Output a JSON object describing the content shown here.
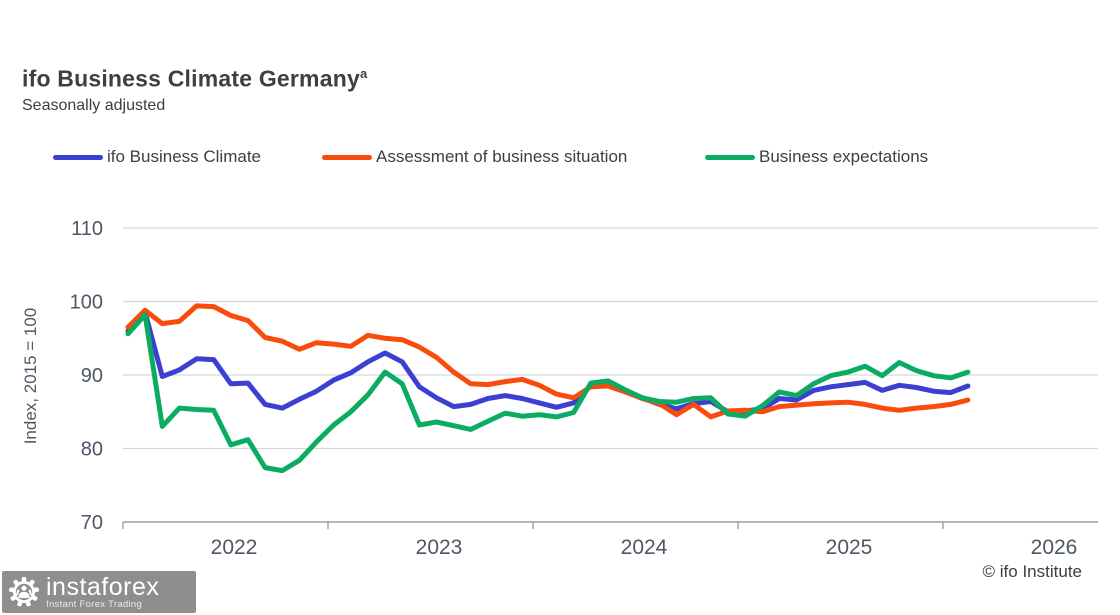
{
  "header": {
    "title": "ifo Business Climate Germany",
    "title_superscript": "a",
    "subtitle": "Seasonally adjusted"
  },
  "legend": [
    {
      "label": "ifo Business Climate",
      "color": "#3c3fd1"
    },
    {
      "label": "Assessment of business situation",
      "color": "#f94b0c"
    },
    {
      "label": "Business expectations",
      "color": "#0bac62"
    }
  ],
  "footer": {
    "credit": "© ifo Institute"
  },
  "logo": {
    "brand": "instaforex",
    "tagline": "Instant Forex Trading"
  },
  "chart_data": {
    "type": "line",
    "title": "ifo Business Climate Germany",
    "subtitle": "Seasonally adjusted",
    "ylabel": "Index, 2015 = 100",
    "xlabel": "",
    "ylim": [
      70,
      112
    ],
    "y_ticks": [
      70,
      80,
      90,
      100,
      110
    ],
    "x_tick_years": [
      "2022",
      "2023",
      "2024",
      "2025",
      "2026"
    ],
    "x_unit": "month",
    "x_start": "2022-01",
    "x_end": "2026-02",
    "grid": "horizontal",
    "legend_position": "top",
    "series": [
      {
        "name": "ifo Business Climate",
        "color": "#3c3fd1",
        "values": [
          96.0,
          98.5,
          89.8,
          90.7,
          92.2,
          92.1,
          88.8,
          88.9,
          86.0,
          85.5,
          86.7,
          87.8,
          89.3,
          90.3,
          91.8,
          93.0,
          91.8,
          88.4,
          86.9,
          85.7,
          86.0,
          86.8,
          87.2,
          86.8,
          86.2,
          85.6,
          86.2,
          88.6,
          89.0,
          87.9,
          86.9,
          86.0,
          85.4,
          86.1,
          86.4,
          85.0,
          85.1,
          85.4,
          86.8,
          86.6,
          87.9,
          88.4,
          88.7,
          89.0,
          87.9,
          88.6,
          88.3,
          87.8,
          87.6,
          88.5
        ]
      },
      {
        "name": "Assessment of business situation",
        "color": "#f94b0c",
        "values": [
          96.5,
          98.8,
          97.0,
          97.3,
          99.4,
          99.3,
          98.1,
          97.4,
          95.1,
          94.6,
          93.5,
          94.4,
          94.2,
          93.9,
          95.4,
          95.0,
          94.8,
          93.8,
          92.4,
          90.4,
          88.8,
          88.7,
          89.1,
          89.4,
          88.6,
          87.4,
          86.9,
          88.4,
          88.5,
          87.7,
          86.8,
          86.1,
          84.6,
          86.0,
          84.3,
          85.1,
          85.2,
          85.0,
          85.7,
          85.9,
          86.1,
          86.2,
          86.3,
          86.0,
          85.5,
          85.2,
          85.5,
          85.7,
          86.0,
          86.6
        ]
      },
      {
        "name": "Business expectations",
        "color": "#0bac62",
        "values": [
          95.6,
          98.2,
          83.0,
          85.5,
          85.3,
          85.2,
          80.5,
          81.2,
          77.4,
          77.0,
          78.4,
          80.9,
          83.2,
          85.0,
          87.3,
          90.4,
          88.8,
          83.2,
          83.6,
          83.1,
          82.6,
          83.7,
          84.8,
          84.4,
          84.6,
          84.3,
          84.9,
          88.9,
          89.2,
          88.0,
          86.9,
          86.4,
          86.3,
          86.8,
          86.9,
          84.7,
          84.4,
          85.8,
          87.7,
          87.2,
          88.8,
          89.9,
          90.4,
          91.2,
          89.9,
          91.7,
          90.6,
          89.9,
          89.6,
          90.4
        ]
      }
    ]
  }
}
